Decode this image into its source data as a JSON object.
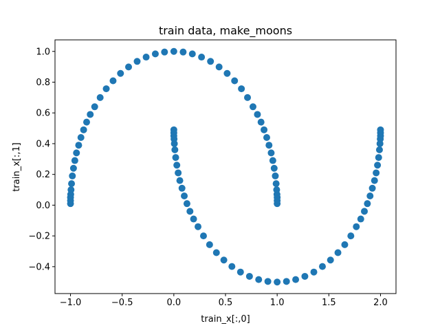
{
  "chart_data": {
    "type": "scatter",
    "title": "train data, make_moons",
    "xlabel": "train_x[:,0]",
    "ylabel": "train_x[:,1]",
    "xlim": [
      -1.15,
      2.15
    ],
    "ylim": [
      -0.575,
      1.075
    ],
    "xticks": [
      -1.0,
      -0.5,
      0.0,
      0.5,
      1.0,
      1.5,
      2.0
    ],
    "xtick_labels": [
      "−1.0",
      "−0.5",
      "0.0",
      "0.5",
      "1.0",
      "1.5",
      "2.0"
    ],
    "yticks": [
      -0.4,
      -0.2,
      0.0,
      0.2,
      0.4,
      0.6,
      0.8,
      1.0
    ],
    "ytick_labels": [
      "−0.4",
      "−0.2",
      "0.0",
      "0.2",
      "0.4",
      "0.6",
      "0.8",
      "1.0"
    ],
    "grid": false,
    "marker_color": "#1f77b4",
    "series": [
      {
        "points": [
          [
            1.0,
            0.01
          ],
          [
            1.0,
            0.03
          ],
          [
            1.0,
            0.05
          ],
          [
            0.998,
            0.07
          ],
          [
            0.995,
            0.1
          ],
          [
            0.99,
            0.14
          ],
          [
            0.982,
            0.19
          ],
          [
            0.971,
            0.24
          ],
          [
            0.958,
            0.29
          ],
          [
            0.942,
            0.34
          ],
          [
            0.921,
            0.39
          ],
          [
            0.899,
            0.44
          ],
          [
            0.873,
            0.49
          ],
          [
            0.844,
            0.54
          ],
          [
            0.809,
            0.59
          ],
          [
            0.766,
            0.64
          ],
          [
            0.713,
            0.7
          ],
          [
            0.654,
            0.757
          ],
          [
            0.588,
            0.809
          ],
          [
            0.516,
            0.857
          ],
          [
            0.438,
            0.899
          ],
          [
            0.355,
            0.935
          ],
          [
            0.268,
            0.963
          ],
          [
            0.179,
            0.984
          ],
          [
            0.09,
            0.996
          ],
          [
            0.0,
            1.0
          ],
          [
            -0.09,
            0.996
          ],
          [
            -0.179,
            0.984
          ],
          [
            -0.268,
            0.963
          ],
          [
            -0.355,
            0.935
          ],
          [
            -0.438,
            0.899
          ],
          [
            -0.516,
            0.857
          ],
          [
            -0.588,
            0.809
          ],
          [
            -0.654,
            0.757
          ],
          [
            -0.713,
            0.7
          ],
          [
            -0.766,
            0.64
          ],
          [
            -0.809,
            0.59
          ],
          [
            -0.844,
            0.54
          ],
          [
            -0.873,
            0.49
          ],
          [
            -0.899,
            0.44
          ],
          [
            -0.921,
            0.39
          ],
          [
            -0.942,
            0.34
          ],
          [
            -0.958,
            0.29
          ],
          [
            -0.971,
            0.24
          ],
          [
            -0.982,
            0.19
          ],
          [
            -0.99,
            0.14
          ],
          [
            -0.995,
            0.1
          ],
          [
            -0.998,
            0.07
          ],
          [
            -1.0,
            0.05
          ],
          [
            -1.0,
            0.03
          ],
          [
            -1.0,
            0.01
          ]
        ]
      },
      {
        "points": [
          [
            0.0,
            0.49
          ],
          [
            0.0,
            0.47
          ],
          [
            0.0,
            0.45
          ],
          [
            0.002,
            0.43
          ],
          [
            0.005,
            0.4
          ],
          [
            0.01,
            0.36
          ],
          [
            0.018,
            0.31
          ],
          [
            0.029,
            0.26
          ],
          [
            0.042,
            0.21
          ],
          [
            0.058,
            0.16
          ],
          [
            0.079,
            0.11
          ],
          [
            0.101,
            0.06
          ],
          [
            0.127,
            0.01
          ],
          [
            0.156,
            -0.04
          ],
          [
            0.191,
            -0.09
          ],
          [
            0.234,
            -0.14
          ],
          [
            0.287,
            -0.2
          ],
          [
            0.346,
            -0.257
          ],
          [
            0.412,
            -0.309
          ],
          [
            0.484,
            -0.357
          ],
          [
            0.562,
            -0.399
          ],
          [
            0.645,
            -0.435
          ],
          [
            0.732,
            -0.463
          ],
          [
            0.821,
            -0.484
          ],
          [
            0.91,
            -0.496
          ],
          [
            1.0,
            -0.5
          ],
          [
            1.09,
            -0.496
          ],
          [
            1.179,
            -0.484
          ],
          [
            1.268,
            -0.463
          ],
          [
            1.355,
            -0.435
          ],
          [
            1.438,
            -0.399
          ],
          [
            1.516,
            -0.357
          ],
          [
            1.588,
            -0.309
          ],
          [
            1.654,
            -0.257
          ],
          [
            1.713,
            -0.2
          ],
          [
            1.766,
            -0.14
          ],
          [
            1.809,
            -0.09
          ],
          [
            1.844,
            -0.04
          ],
          [
            1.873,
            0.01
          ],
          [
            1.899,
            0.06
          ],
          [
            1.921,
            0.11
          ],
          [
            1.942,
            0.16
          ],
          [
            1.958,
            0.21
          ],
          [
            1.971,
            0.26
          ],
          [
            1.982,
            0.31
          ],
          [
            1.99,
            0.36
          ],
          [
            1.995,
            0.4
          ],
          [
            1.998,
            0.43
          ],
          [
            2.0,
            0.45
          ],
          [
            2.0,
            0.47
          ],
          [
            2.0,
            0.49
          ]
        ]
      }
    ]
  }
}
